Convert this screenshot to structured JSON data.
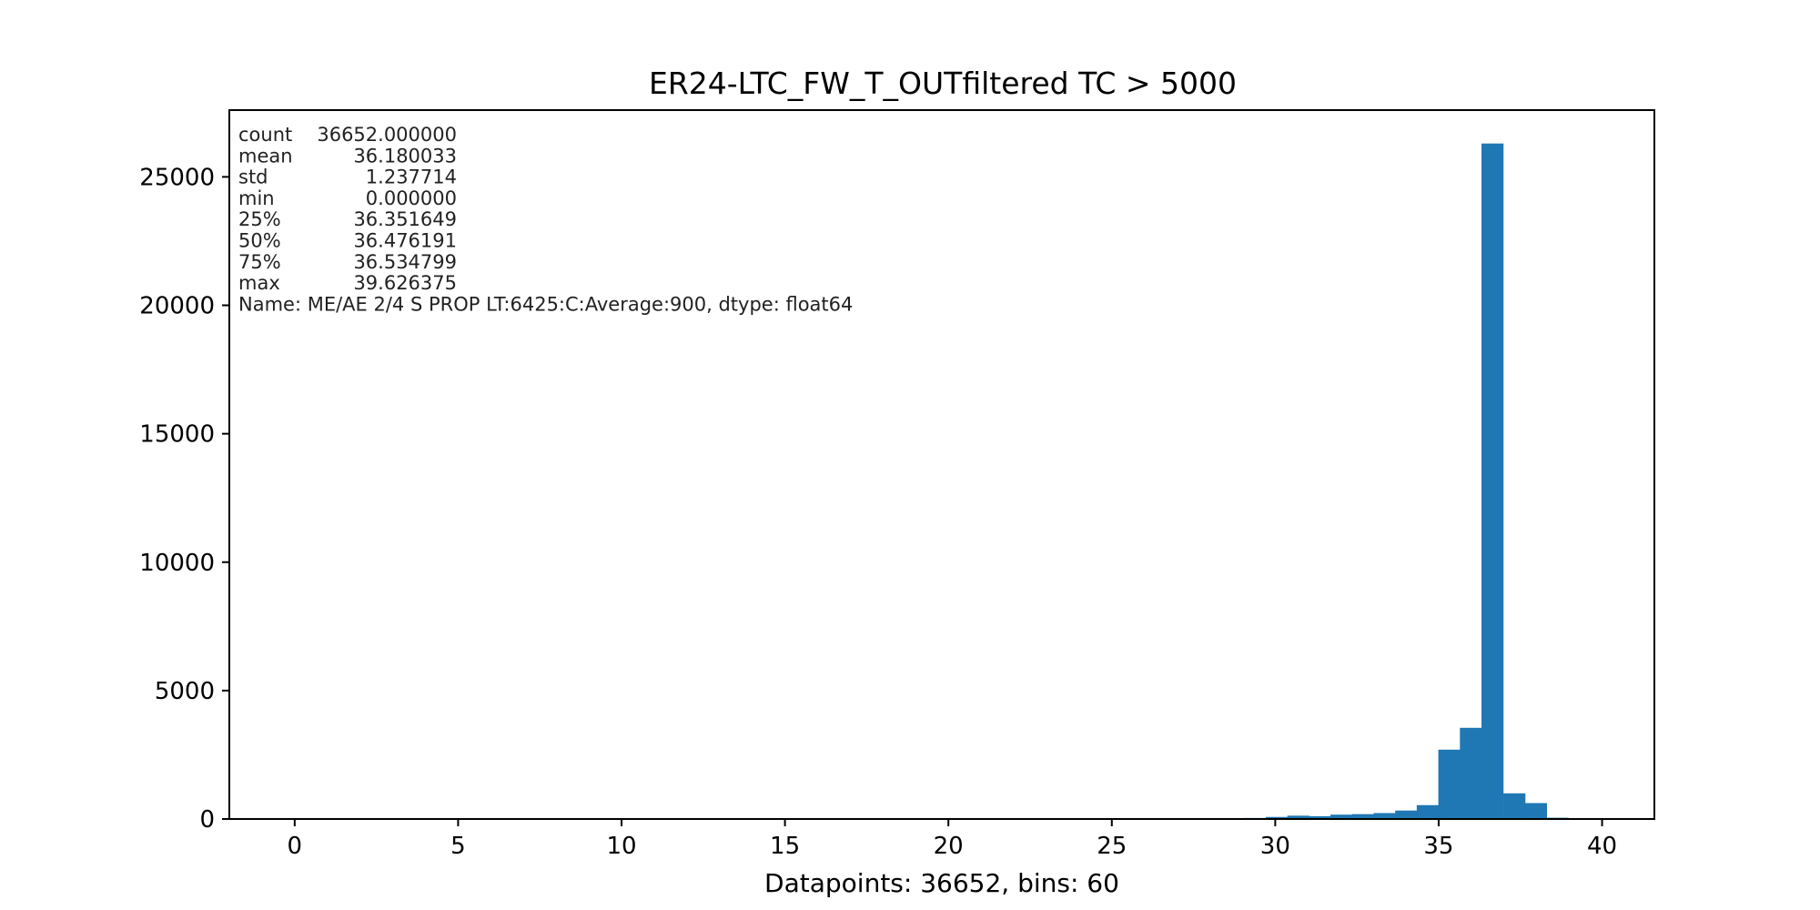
{
  "chart_data": {
    "type": "bar",
    "title": "ER24-LTC_FW_T_OUTfiltered TC > 5000",
    "xlabel": "Datapoints: 36652, bins: 60",
    "ylabel": "",
    "xlim": [
      -2.0,
      41.6
    ],
    "ylim": [
      0,
      27600
    ],
    "xticks": [
      0,
      5,
      10,
      15,
      20,
      25,
      30,
      35,
      40
    ],
    "yticks": [
      0,
      5000,
      10000,
      15000,
      20000,
      25000
    ],
    "grid": false,
    "bar_color": "#1f77b4",
    "bin_width": 0.66044,
    "bins": [
      {
        "x0": 29.05,
        "count": 40
      },
      {
        "x0": 29.71,
        "count": 80
      },
      {
        "x0": 30.37,
        "count": 130
      },
      {
        "x0": 31.03,
        "count": 110
      },
      {
        "x0": 31.69,
        "count": 170
      },
      {
        "x0": 32.35,
        "count": 190
      },
      {
        "x0": 33.01,
        "count": 230
      },
      {
        "x0": 33.67,
        "count": 330
      },
      {
        "x0": 34.33,
        "count": 540
      },
      {
        "x0": 34.99,
        "count": 2700
      },
      {
        "x0": 35.65,
        "count": 3550
      },
      {
        "x0": 36.31,
        "count": 26300
      },
      {
        "x0": 36.98,
        "count": 1000
      },
      {
        "x0": 37.64,
        "count": 620
      },
      {
        "x0": 38.3,
        "count": 50
      }
    ],
    "stats": [
      {
        "label": "count",
        "value": "36652.000000"
      },
      {
        "label": "mean",
        "value": "36.180033"
      },
      {
        "label": "std",
        "value": "1.237714"
      },
      {
        "label": "min",
        "value": "0.000000"
      },
      {
        "label": "25%",
        "value": "36.351649"
      },
      {
        "label": "50%",
        "value": "36.476191"
      },
      {
        "label": "75%",
        "value": "36.534799"
      },
      {
        "label": "max",
        "value": "39.626375"
      }
    ],
    "stats_footer": "Name: ME/AE 2/4 S PROP LT:6425:C:Average:900, dtype: float64"
  }
}
